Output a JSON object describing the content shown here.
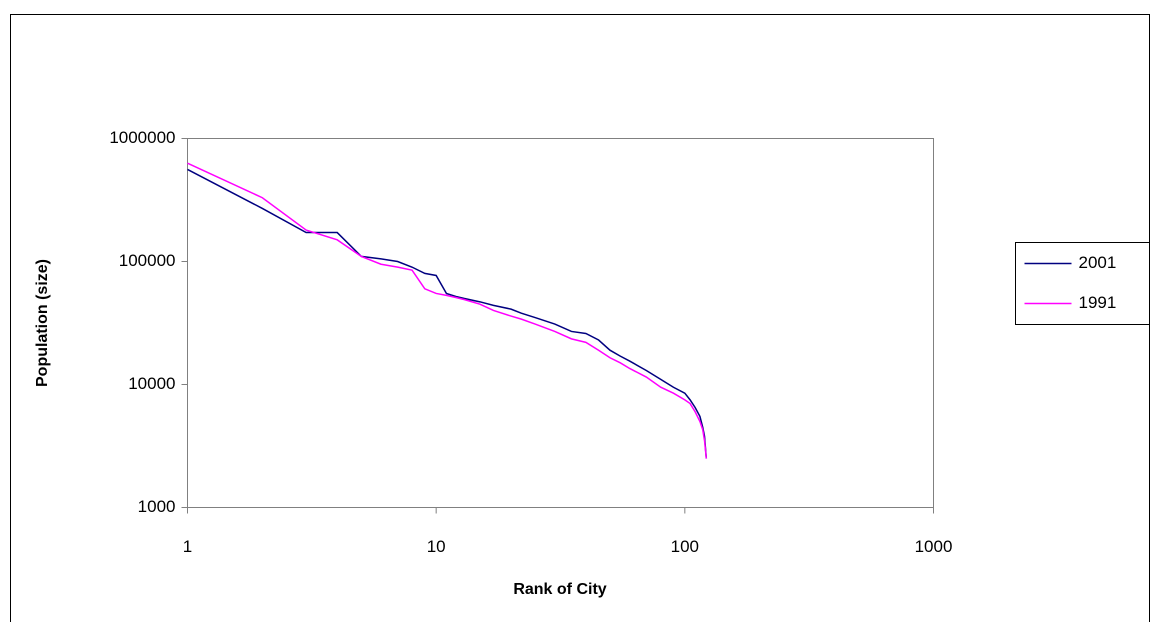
{
  "chart_data": {
    "type": "line",
    "xlabel": "Rank of City",
    "ylabel": "Population (size)",
    "xscale": "log",
    "yscale": "log",
    "xlim": [
      1,
      1000
    ],
    "ylim": [
      1000,
      1000000
    ],
    "xticks": [
      1,
      10,
      100,
      1000
    ],
    "yticks": [
      1000,
      10000,
      100000,
      1000000
    ],
    "legend": "right",
    "x": [
      1,
      2,
      3,
      4,
      5,
      6,
      7,
      8,
      9,
      10,
      11,
      12,
      13,
      15,
      17,
      20,
      22,
      25,
      30,
      35,
      40,
      45,
      50,
      55,
      60,
      70,
      80,
      90,
      100,
      105,
      110,
      115,
      118,
      120,
      122
    ],
    "series": [
      {
        "name": "2001",
        "color": "#000080",
        "values": [
          560000,
          270000,
          172000,
          172000,
          110000,
          105000,
          100000,
          90000,
          80000,
          77000,
          55000,
          52000,
          50000,
          47000,
          44000,
          41000,
          38000,
          35000,
          31000,
          27000,
          26000,
          23000,
          19000,
          17000,
          15500,
          13000,
          11000,
          9500,
          8500,
          7500,
          6500,
          5500,
          4500,
          3800,
          2500
        ]
      },
      {
        "name": "1991",
        "color": "#ff00ff",
        "values": [
          630000,
          330000,
          180000,
          150000,
          110000,
          95000,
          90000,
          85000,
          60000,
          55000,
          53000,
          51000,
          49000,
          45000,
          40000,
          36000,
          34000,
          31000,
          27000,
          23500,
          22000,
          19000,
          16500,
          15000,
          13500,
          11500,
          9500,
          8500,
          7500,
          7000,
          6000,
          5000,
          4300,
          3500,
          2500
        ]
      }
    ]
  }
}
